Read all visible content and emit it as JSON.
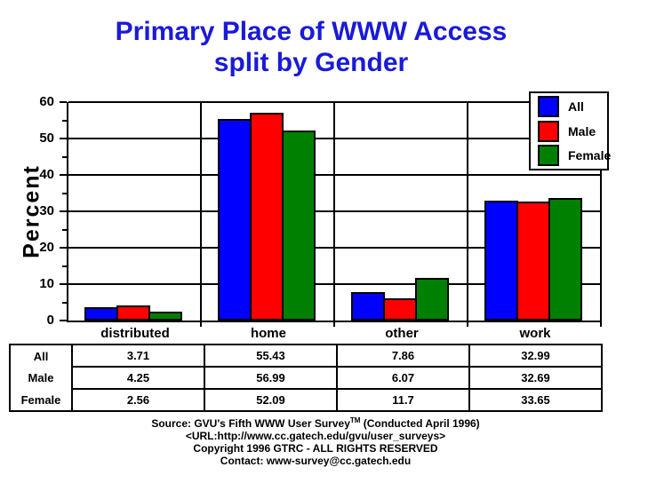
{
  "title": {
    "line1": "Primary Place of WWW Access",
    "line2": "split by Gender"
  },
  "colors": {
    "title_blue": "#1a1ad9",
    "axis_black": "#000000",
    "background": "#ffffff",
    "series_all": "#0000ff",
    "series_male": "#ff0000",
    "series_female": "#008000"
  },
  "chart_data": {
    "type": "bar",
    "categories": [
      "distributed",
      "home",
      "other",
      "work"
    ],
    "series": [
      {
        "name": "All",
        "color": "#0000ff",
        "values": [
          3.71,
          55.43,
          7.86,
          32.99
        ]
      },
      {
        "name": "Male",
        "color": "#ff0000",
        "values": [
          4.25,
          56.99,
          6.07,
          32.69
        ]
      },
      {
        "name": "Female",
        "color": "#008000",
        "values": [
          2.56,
          52.09,
          11.7,
          33.65
        ]
      }
    ],
    "ylabel": "Percent",
    "xlabel": "",
    "ylim": [
      0,
      60
    ],
    "ytick_step": 10,
    "yminor_step": 5,
    "ytick_labels": [
      "0",
      "10",
      "20",
      "30",
      "40",
      "50",
      "60"
    ],
    "grid": true,
    "legend_position": "top-right"
  },
  "table": {
    "rows": [
      {
        "label": "All",
        "values": [
          "3.71",
          "55.43",
          "7.86",
          "32.99"
        ]
      },
      {
        "label": "Male",
        "values": [
          "4.25",
          "56.99",
          "6.07",
          "32.69"
        ]
      },
      {
        "label": "Female",
        "values": [
          "2.56",
          "52.09",
          "11.7",
          "33.65"
        ]
      }
    ]
  },
  "footer": {
    "line1_prefix": "Source: GVU's Fifth WWW User Survey",
    "line1_tm": "TM",
    "line1_suffix": " (Conducted April 1996)",
    "line2": "<URL:http://www.cc.gatech.edu/gvu/user_surveys>",
    "line3": "Copyright 1996 GTRC -  ALL RIGHTS RESERVED",
    "line4": "Contact: www-survey@cc.gatech.edu"
  }
}
